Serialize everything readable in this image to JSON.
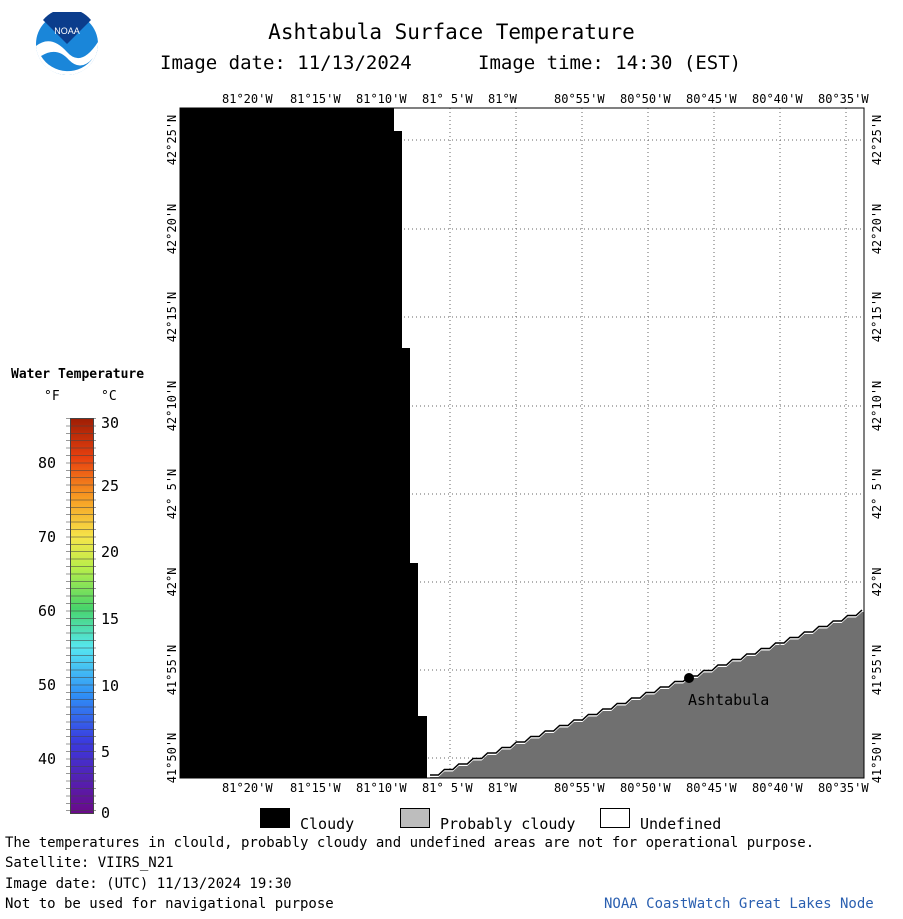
{
  "header": {
    "title": "Ashtabula Surface Temperature",
    "image_date_label": "Image date: 11/13/2024",
    "image_time_label": "Image time: 14:30 (EST)"
  },
  "logo": {
    "text": "NOAA"
  },
  "map": {
    "lon_ticks": [
      "81°20'W",
      "81°15'W",
      "81°10'W",
      "81° 5'W",
      "81°W",
      "80°55'W",
      "80°50'W",
      "80°45'W",
      "80°40'W",
      "80°35'W"
    ],
    "lat_ticks": [
      "42°25'N",
      "42°20'N",
      "42°15'N",
      "42°10'N",
      "42° 5'N",
      "42°N",
      "41°55'N",
      "41°50'N"
    ],
    "city": "Ashtabula",
    "colors": {
      "cloudy": "#000000",
      "land": "#707070",
      "grid": "#666666"
    }
  },
  "temp_legend": {
    "title": "Water Temperature",
    "f_label": "°F",
    "c_label": "°C",
    "f_ticks": [
      "80",
      "70",
      "60",
      "50",
      "40"
    ],
    "c_ticks": [
      "30",
      "25",
      "20",
      "15",
      "10",
      "5",
      "0"
    ]
  },
  "key": {
    "cloudy": "Cloudy",
    "probably_cloudy": "Probably cloudy",
    "undefined": "Undefined"
  },
  "footer": {
    "disclaimer": "The temperatures in clould, probably cloudy and undefined areas are not for operational purpose.",
    "satellite": "Satellite: VIIRS_N21",
    "utc_date": "Image date: (UTC) 11/13/2024  19:30",
    "nav_note": "Not to be used for navigational purpose",
    "credit": "NOAA CoastWatch Great Lakes Node"
  }
}
